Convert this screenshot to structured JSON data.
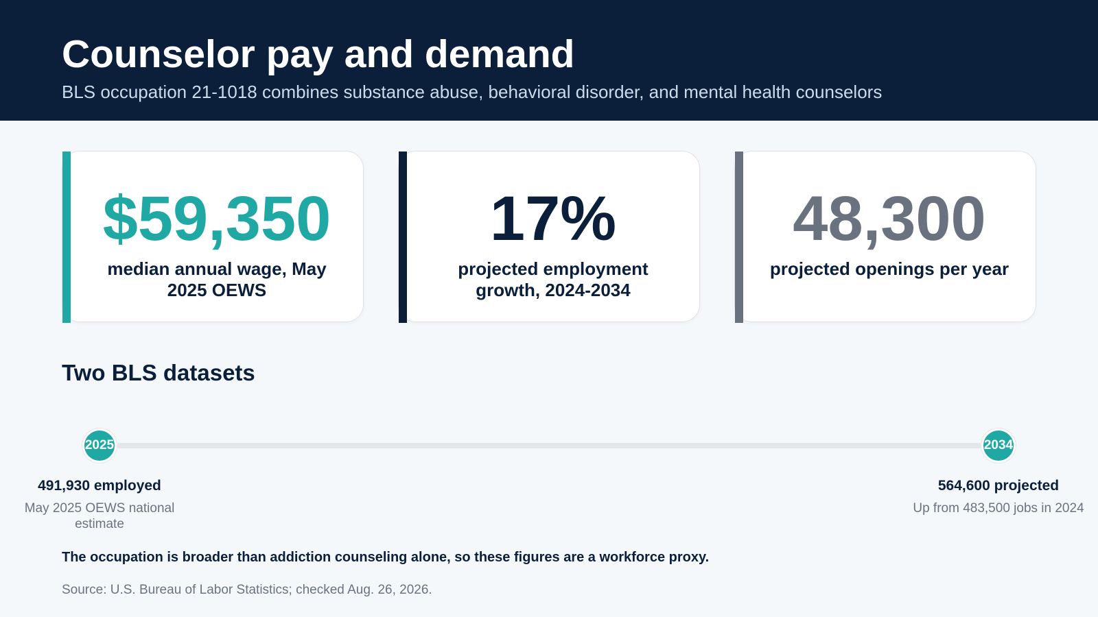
{
  "header": {
    "title": "Counselor pay and demand",
    "subtitle": "BLS occupation 21-1018 combines substance abuse, behavioral disorder, and mental health counselors"
  },
  "colors": {
    "navy": "#0b1f3a",
    "teal": "#1fa8a4",
    "slate": "#6b727f",
    "track": "#e4e7ea"
  },
  "stats": [
    {
      "value": "$59,350",
      "label": "median annual wage, May 2025 OEWS",
      "accent": "#1fa8a4",
      "value_color": "#1fa8a4"
    },
    {
      "value": "17%",
      "label": "projected employment growth, 2024-2034",
      "accent": "#0b1f3a",
      "value_color": "#0b1f3a"
    },
    {
      "value": "48,300",
      "label": "projected openings per year",
      "accent": "#6b727f",
      "value_color": "#6b727f"
    }
  ],
  "section": {
    "title": "Two BLS datasets"
  },
  "timeline": {
    "start": {
      "year": "2025",
      "headline": "491,930 employed",
      "detail": "May 2025 OEWS national estimate"
    },
    "end": {
      "year": "2034",
      "headline": "564,600 projected",
      "detail": "Up from 483,500 jobs in 2024"
    }
  },
  "note": "The occupation is broader than addiction counseling alone, so these figures are a workforce proxy.",
  "source": "Source: U.S. Bureau of Labor Statistics; checked Aug. 26, 2026."
}
